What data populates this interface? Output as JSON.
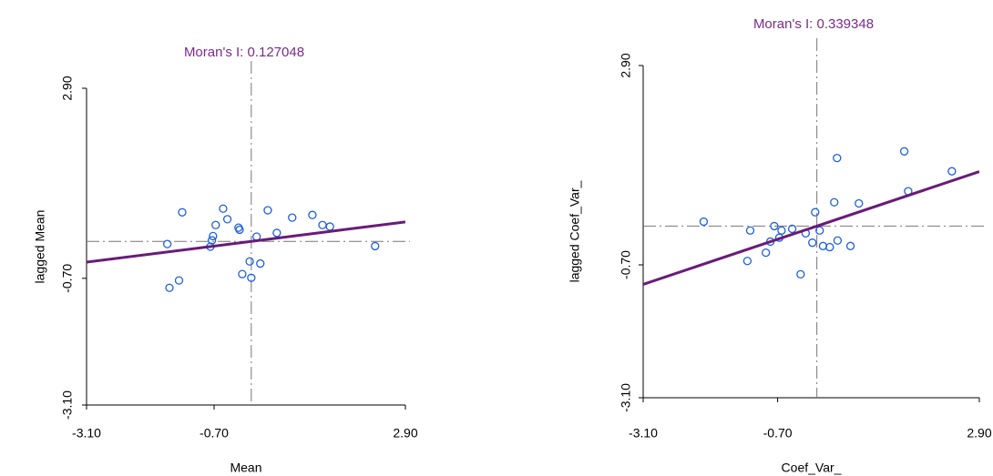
{
  "chart_data": [
    {
      "type": "scatter",
      "title": "Moran's I: 0.127048",
      "xlabel": "Mean",
      "ylabel": "lagged Mean",
      "regression_slope": 0.127048,
      "color": "#1f5fe0",
      "line_color": "#6a1a7a",
      "xlim": [
        -3.1,
        2.9
      ],
      "ylim": [
        -3.1,
        2.9
      ],
      "xticks": [
        {
          "value": -3.1,
          "label": "-3.10"
        },
        {
          "value": -0.7,
          "label": "-0.70"
        },
        {
          "value": 2.9,
          "label": "2.90"
        }
      ],
      "yticks": [
        {
          "value": -3.1,
          "label": "-3.10"
        },
        {
          "value": -0.7,
          "label": "-0.70"
        },
        {
          "value": 2.9,
          "label": "2.90"
        }
      ],
      "x": [
        -1.58,
        -1.54,
        -1.36,
        -1.3,
        -0.77,
        -0.74,
        -0.72,
        -0.67,
        -0.53,
        -0.45,
        -0.24,
        -0.22,
        -0.17,
        -0.03,
        0.0,
        0.1,
        0.17,
        0.31,
        0.48,
        0.77,
        1.15,
        1.34,
        1.48,
        2.33
      ],
      "values": [
        -0.05,
        -0.88,
        -0.74,
        0.55,
        -0.1,
        0.02,
        0.1,
        0.31,
        0.62,
        0.42,
        0.26,
        0.22,
        -0.62,
        -0.38,
        -0.69,
        0.09,
        -0.42,
        0.59,
        0.16,
        0.45,
        0.5,
        0.31,
        0.28,
        -0.09
      ]
    },
    {
      "type": "scatter",
      "title": "Moran's I: 0.339348",
      "xlabel": "Coef_Var_",
      "ylabel": "lagged Coef_Var_",
      "regression_slope": 0.339348,
      "color": "#1f5fe0",
      "line_color": "#6a1a7a",
      "xlim": [
        -3.1,
        2.9
      ],
      "ylim": [
        -3.1,
        2.9
      ],
      "xticks": [
        {
          "value": -3.1,
          "label": "-3.10"
        },
        {
          "value": -0.7,
          "label": "-0.70"
        },
        {
          "value": 2.9,
          "label": "2.90"
        }
      ],
      "yticks": [
        {
          "value": -3.1,
          "label": "-3.10"
        },
        {
          "value": -0.7,
          "label": "-0.70"
        },
        {
          "value": 2.9,
          "label": "2.90"
        }
      ],
      "x": [
        -2.02,
        -1.24,
        -1.19,
        -0.91,
        -0.83,
        -0.76,
        -0.67,
        -0.63,
        -0.44,
        -0.29,
        -0.2,
        -0.08,
        -0.03,
        0.05,
        0.11,
        0.23,
        0.31,
        0.36,
        0.37,
        0.6,
        0.75,
        1.56,
        1.63,
        2.41
      ],
      "values": [
        0.08,
        -0.63,
        -0.08,
        -0.48,
        -0.28,
        0.0,
        -0.21,
        -0.08,
        -0.05,
        -0.87,
        -0.13,
        -0.3,
        0.25,
        -0.08,
        -0.36,
        -0.38,
        0.43,
        1.23,
        -0.26,
        -0.36,
        0.41,
        1.35,
        0.63,
        0.99
      ]
    }
  ]
}
